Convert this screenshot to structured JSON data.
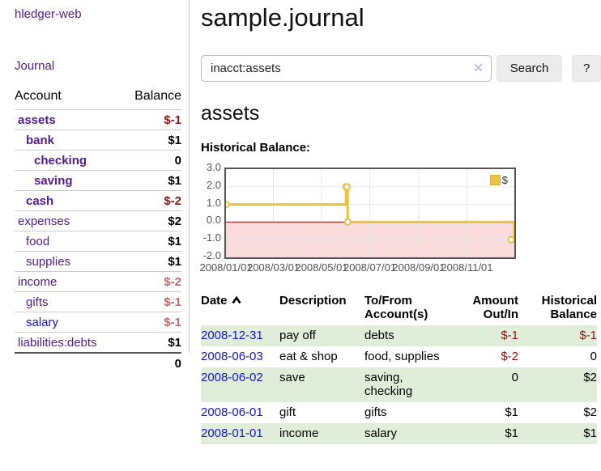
{
  "app_title": "hledger-web",
  "sidebar": {
    "journal_link": "Journal",
    "accounts": {
      "header_account": "Account",
      "header_balance": "Balance",
      "rows": [
        {
          "name": "assets",
          "balance": "$-1",
          "indent": 0,
          "bold": true,
          "balance_class": "neg-strong"
        },
        {
          "name": "bank",
          "balance": "$1",
          "indent": 1,
          "bold": true,
          "balance_class": ""
        },
        {
          "name": "checking",
          "balance": "0",
          "indent": 2,
          "bold": true,
          "balance_class": ""
        },
        {
          "name": "saving",
          "balance": "$1",
          "indent": 2,
          "bold": true,
          "balance_class": ""
        },
        {
          "name": "cash",
          "balance": "$-2",
          "indent": 1,
          "bold": true,
          "balance_class": "neg-strong"
        },
        {
          "name": "expenses",
          "balance": "$2",
          "indent": 0,
          "bold": false,
          "balance_class": ""
        },
        {
          "name": "food",
          "balance": "$1",
          "indent": 1,
          "bold": false,
          "balance_class": ""
        },
        {
          "name": "supplies",
          "balance": "$1",
          "indent": 1,
          "bold": false,
          "balance_class": ""
        },
        {
          "name": "income",
          "balance": "$-2",
          "indent": 0,
          "bold": false,
          "balance_class": "neg-muted"
        },
        {
          "name": "gifts",
          "balance": "$-1",
          "indent": 1,
          "bold": false,
          "balance_class": "neg-muted"
        },
        {
          "name": "salary",
          "balance": "$-1",
          "indent": 1,
          "bold": false,
          "balance_class": "neg-muted",
          "link_blue": true
        },
        {
          "name": "liabilities:debts",
          "balance": "$1",
          "indent": 0,
          "bold": false,
          "balance_class": ""
        }
      ],
      "total": "0"
    }
  },
  "main": {
    "title": "sample.journal",
    "search": {
      "value": "inacct:assets",
      "clear": "✕",
      "button": "Search",
      "help": "?"
    },
    "account_heading": "assets",
    "chart_heading": "Historical Balance:"
  },
  "chart_data": {
    "type": "line",
    "title": "Historical Balance",
    "step": true,
    "series": [
      {
        "name": "$",
        "color": "#edc240",
        "points": [
          {
            "date": "2008-01-01",
            "value": 1
          },
          {
            "date": "2008-06-01",
            "value": 2
          },
          {
            "date": "2008-06-02",
            "value": 2
          },
          {
            "date": "2008-06-03",
            "value": 0
          },
          {
            "date": "2008-12-31",
            "value": -1
          }
        ]
      }
    ],
    "xlim": [
      "2008-01-01",
      "2008-12-31"
    ],
    "ylim": [
      -2,
      3
    ],
    "x_ticks": [
      "2008/01/01",
      "2008/03/01",
      "2008/05/01",
      "2008/07/01",
      "2008/09/01",
      "2008/11/01"
    ],
    "y_ticks": [
      3.0,
      2.0,
      1.0,
      0.0,
      -1.0,
      -2.0
    ],
    "grid": true,
    "legend_position": "top-right",
    "legend_label": "$",
    "negative_region_fill": "#fbdcdc",
    "zero_line_color": "#a40000",
    "grid_color": "#e8e8e8",
    "border_color": "#545454"
  },
  "register": {
    "headers": {
      "date": "Date",
      "description": "Description",
      "accounts": "To/From Account(s)",
      "amount": "Amount Out/In",
      "balance": "Historical Balance"
    },
    "rows": [
      {
        "date": "2008-12-31",
        "description": "pay off",
        "accounts": "debts",
        "amount": "$-1",
        "balance": "$-1",
        "amount_class": "neg-strong",
        "balance_class": "neg-strong",
        "shade": true
      },
      {
        "date": "2008-06-03",
        "description": "eat & shop",
        "accounts": "food, supplies",
        "amount": "$-2",
        "balance": "0",
        "amount_class": "neg-strong",
        "balance_class": "",
        "shade": false
      },
      {
        "date": "2008-06-02",
        "description": "save",
        "accounts": "saving, checking",
        "amount": "0",
        "balance": "$2",
        "amount_class": "",
        "balance_class": "",
        "shade": true
      },
      {
        "date": "2008-06-01",
        "description": "gift",
        "accounts": "gifts",
        "amount": "$1",
        "balance": "$2",
        "amount_class": "",
        "balance_class": "",
        "shade": false
      },
      {
        "date": "2008-01-01",
        "description": "income",
        "accounts": "salary",
        "amount": "$1",
        "balance": "$1",
        "amount_class": "",
        "balance_class": "",
        "shade": true
      }
    ]
  },
  "colors": {
    "accent_purple": "#551a8b",
    "link_blue": "#1414d6",
    "neg_strong": "#8f1515",
    "neg_muted": "#bd6c6c",
    "row_green": "#e0edd8",
    "series_gold": "#edc240"
  }
}
